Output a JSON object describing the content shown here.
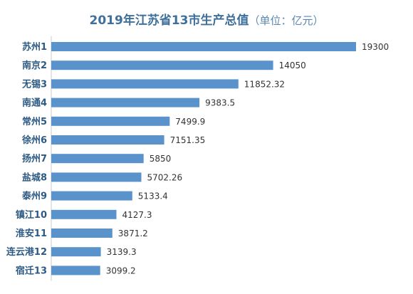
{
  "chart_data": {
    "type": "bar",
    "orientation": "horizontal",
    "title": "2019年江苏省13市生产总值",
    "unit_note": "（单位：亿元）",
    "categories": [
      "苏州1",
      "南京2",
      "无锡3",
      "南通4",
      "常州5",
      "徐州6",
      "扬州7",
      "盐城8",
      "泰州9",
      "镇江10",
      "淮安11",
      "连云港12",
      "宿迁13"
    ],
    "values": [
      19300,
      14050,
      11852.32,
      9383.5,
      7499.9,
      7151.35,
      5850,
      5702.26,
      5133.4,
      4127.3,
      3871.2,
      3139.3,
      3099.2
    ],
    "value_labels": [
      "19300",
      "14050",
      "11852.32",
      "9383.5",
      "7499.9",
      "7151.35",
      "5850",
      "5702.26",
      "5133.4",
      "4127.3",
      "3871.2",
      "3139.3",
      "3099.2"
    ],
    "xlim": [
      0,
      19300
    ],
    "grid": false,
    "legend": "none",
    "bar_color": "#5a93cc",
    "label_color": "#2d5a83",
    "title_color": "#3f6f9b"
  }
}
